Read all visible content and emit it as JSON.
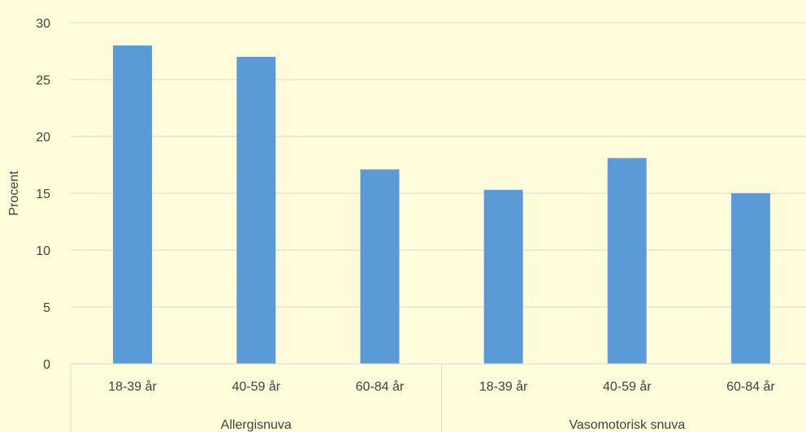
{
  "chart_data": {
    "type": "bar",
    "title": "",
    "xlabel": "",
    "ylabel": "Procent",
    "ylim": [
      0,
      30
    ],
    "yticks": [
      0,
      5,
      10,
      15,
      20,
      25,
      30
    ],
    "grid": true,
    "legend": "none",
    "bar_color": "#5b9bd5",
    "groups": [
      {
        "name": "Allergisnuva",
        "categories": [
          "18-39 år",
          "40-59 år",
          "60-84 år"
        ],
        "values": [
          28,
          27,
          17.1
        ]
      },
      {
        "name": "Vasomotorisk snuva",
        "categories": [
          "18-39 år",
          "40-59 år",
          "60-84 år"
        ],
        "values": [
          15.3,
          18.1,
          15
        ]
      }
    ]
  }
}
